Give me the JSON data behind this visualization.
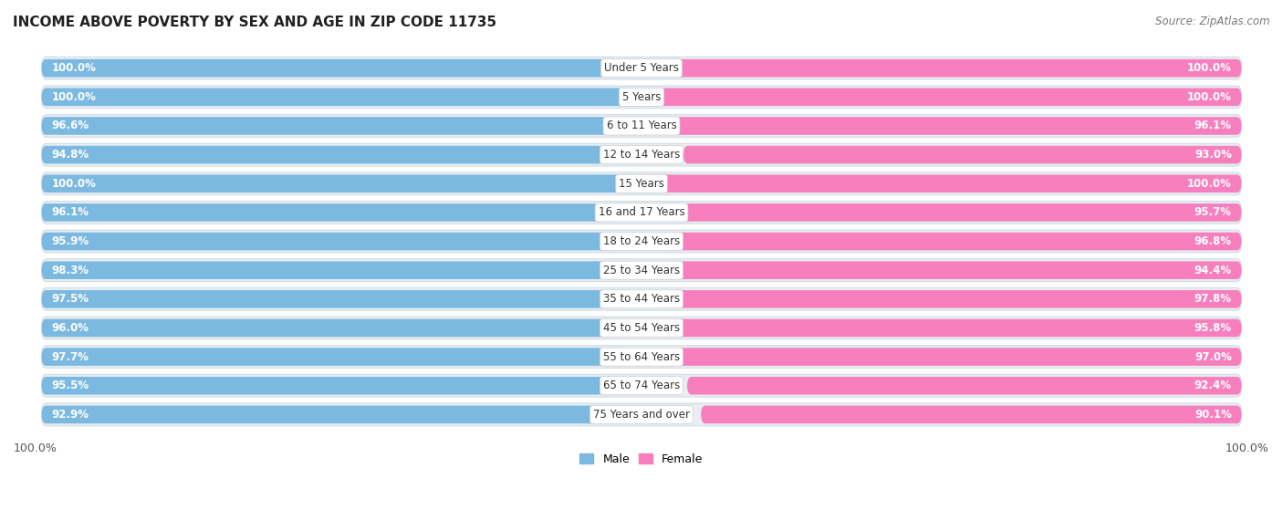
{
  "title": "INCOME ABOVE POVERTY BY SEX AND AGE IN ZIP CODE 11735",
  "source": "Source: ZipAtlas.com",
  "categories": [
    "Under 5 Years",
    "5 Years",
    "6 to 11 Years",
    "12 to 14 Years",
    "15 Years",
    "16 and 17 Years",
    "18 to 24 Years",
    "25 to 34 Years",
    "35 to 44 Years",
    "45 to 54 Years",
    "55 to 64 Years",
    "65 to 74 Years",
    "75 Years and over"
  ],
  "male_values": [
    100.0,
    100.0,
    96.6,
    94.8,
    100.0,
    96.1,
    95.9,
    98.3,
    97.5,
    96.0,
    97.7,
    95.5,
    92.9
  ],
  "female_values": [
    100.0,
    100.0,
    96.1,
    93.0,
    100.0,
    95.7,
    96.8,
    94.4,
    97.8,
    95.8,
    97.0,
    92.4,
    90.1
  ],
  "male_color": "#7cb9e0",
  "female_color": "#f77fbe",
  "bg_bar_color": "#dce8f0",
  "title_fontsize": 11,
  "source_fontsize": 8.5,
  "value_fontsize": 8.5,
  "category_fontsize": 8.5,
  "legend_fontsize": 9
}
